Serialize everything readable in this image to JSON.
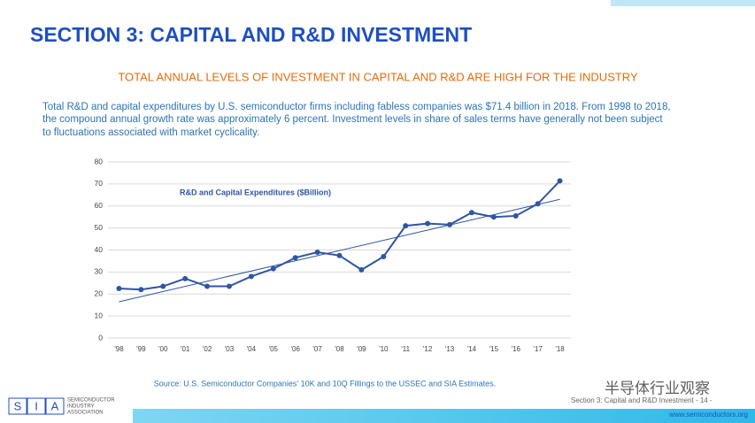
{
  "header": {
    "title": "SECTION 3: CAPITAL AND R&D INVESTMENT",
    "subtitle": "TOTAL ANNUAL LEVELS OF INVESTMENT IN CAPITAL AND R&D ARE HIGH FOR THE INDUSTRY",
    "body": [
      "Total R&D and capital expenditures by U.S. semiconductor firms including fabless companies was $71.4 billion in 2018. From 1998 to 2018,",
      "the compound annual growth rate was approximately 6 percent. Investment levels in share of sales terms have generally not been subject",
      "to fluctuations associated with market cyclicality."
    ]
  },
  "chart_data": {
    "type": "line",
    "categories": [
      "'98",
      "'99",
      "'00",
      "'01",
      "'02",
      "'03",
      "'04",
      "'05",
      "'06",
      "'07",
      "'08",
      "'09",
      "'10",
      "'11",
      "'12",
      "'13",
      "'14",
      "'15",
      "'16",
      "'17",
      "'18"
    ],
    "series": [
      {
        "name": "R&D and Capital Expenditures ($Billion)",
        "color": "#2f55a4",
        "values": [
          22.5,
          22,
          23.5,
          27,
          23.5,
          23.5,
          28,
          31.5,
          36.5,
          39,
          37.5,
          31,
          37,
          51,
          52,
          51.5,
          57,
          55,
          55.5,
          61,
          71.4
        ]
      }
    ],
    "trendline": [
      16.5,
      63
    ],
    "ylim": [
      0,
      80
    ],
    "yticks": [
      0,
      10,
      20,
      30,
      40,
      50,
      60,
      70,
      80
    ],
    "grid": true,
    "source": "Source: U.S. Semiconductor Companies' 10K and 10Q Fillings to the USSEC and SIA Estimates."
  },
  "footer": {
    "section": "Section 3: Capital and R&D Investment - 14 -",
    "url": "www.semiconductors.org",
    "logo": [
      "S",
      "I",
      "A"
    ],
    "org": [
      "SEMICONDUCTOR",
      "INDUSTRY",
      "ASSOCIATION"
    ],
    "watermark": "半导体行业观察"
  }
}
